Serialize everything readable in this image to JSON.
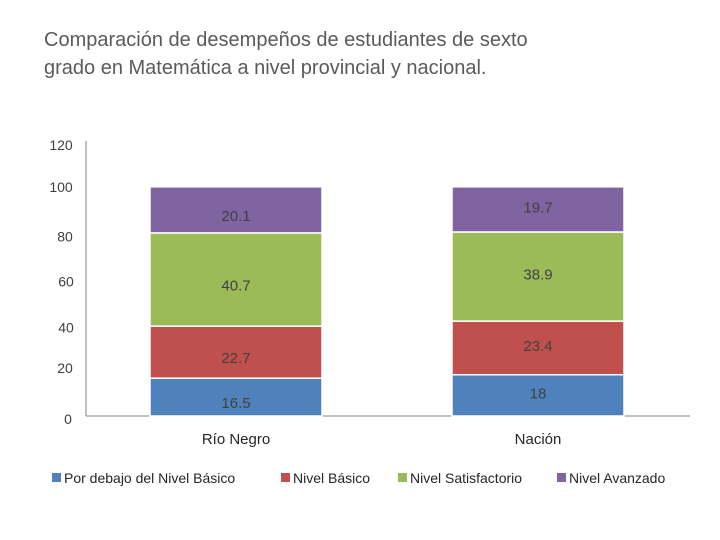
{
  "chart_data": {
    "type": "bar",
    "stacked": true,
    "title": "Comparación de desempeños de estudiantes de sexto\n grado en Matemática a nivel provincial y nacional.",
    "categories": [
      "Río Negro",
      "Nación"
    ],
    "series": [
      {
        "name": "Por debajo del Nivel Básico",
        "color": "#4f81bd",
        "values": [
          16.5,
          18
        ],
        "labels": [
          "16.5",
          "18"
        ]
      },
      {
        "name": "Nivel Básico",
        "color": "#c0504d",
        "values": [
          22.7,
          23.4
        ],
        "labels": [
          "22.7",
          "23.4"
        ]
      },
      {
        "name": "Nivel Satisfactorio",
        "color": "#9bbb59",
        "values": [
          40.7,
          38.9
        ],
        "labels": [
          "40.7",
          "38.9"
        ]
      },
      {
        "name": "Nivel Avanzado",
        "color": "#8064a2",
        "values": [
          20.1,
          19.7
        ],
        "labels": [
          "20.1",
          "19.7"
        ]
      }
    ],
    "y_ticks": [
      "0",
      "20",
      "40",
      "60",
      "80",
      "100",
      "120"
    ],
    "ylim": [
      0,
      120
    ],
    "legend_position": "bottom",
    "xlabel": "",
    "ylabel": ""
  }
}
